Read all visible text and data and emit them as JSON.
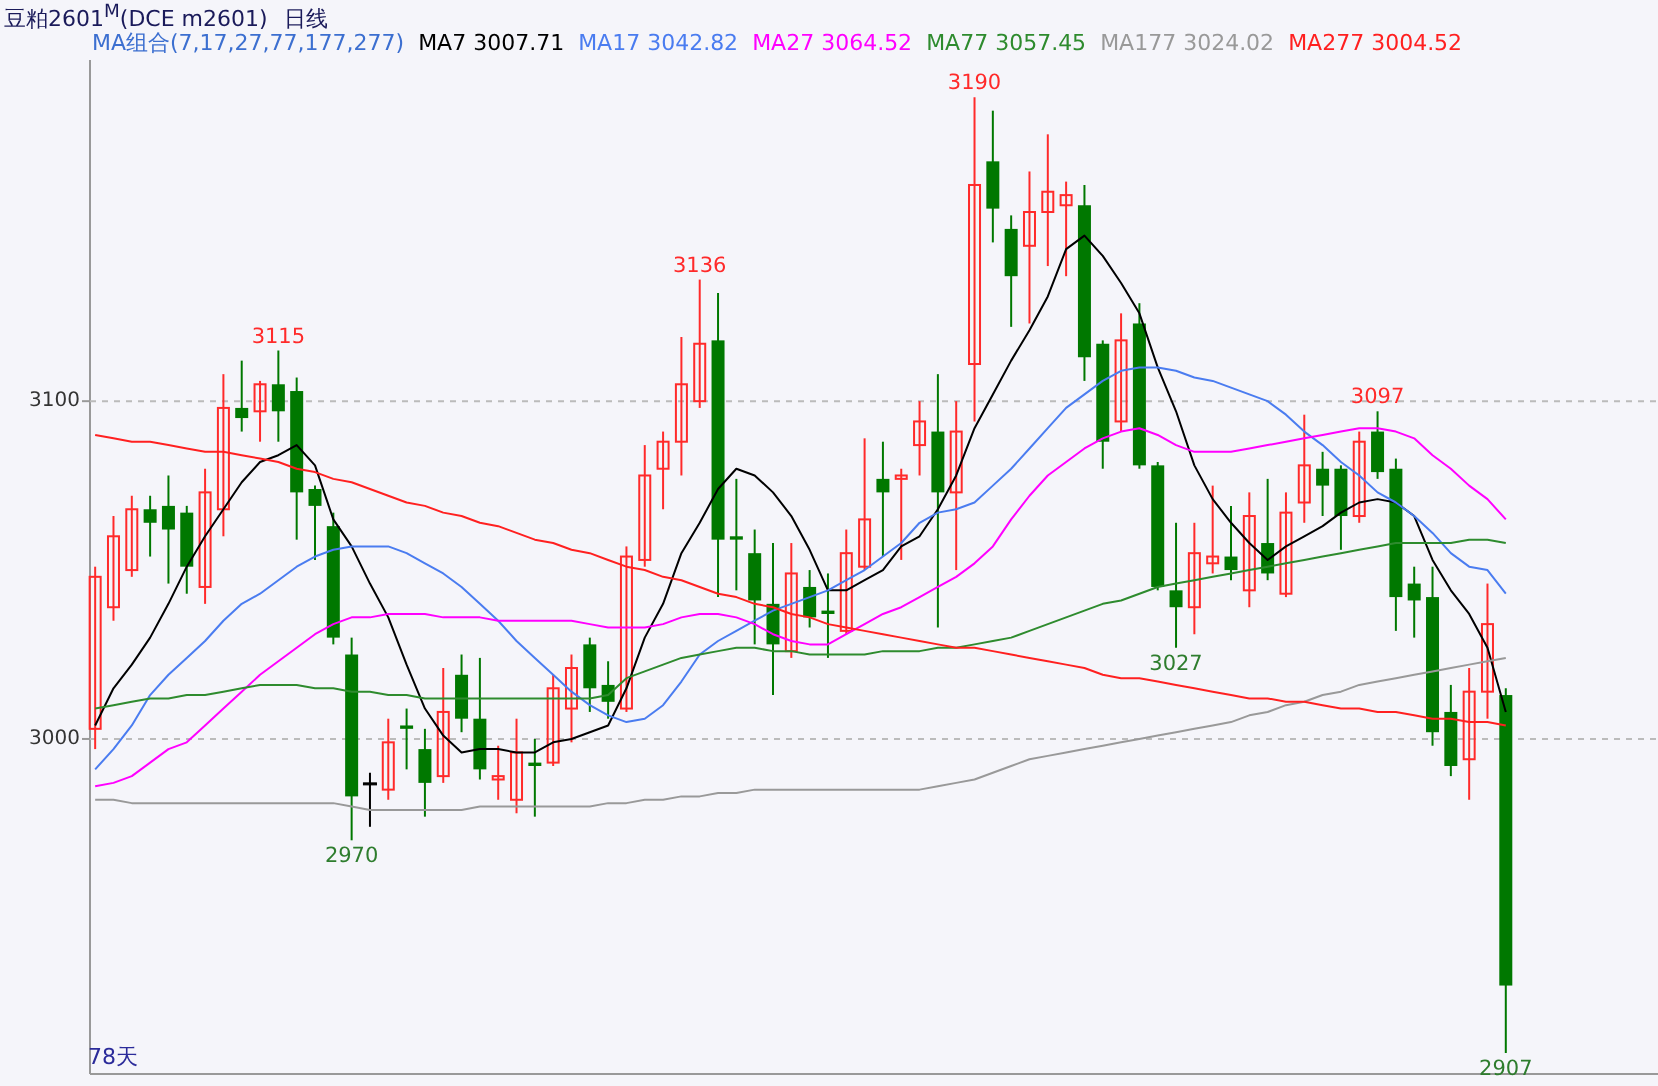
{
  "chart_data": {
    "type": "candlestick",
    "title": "豆粕2601$^{M}$(DCE m2601)",
    "subtitle": "日线",
    "legend_title": "MA组合(7,17,27,77,177,277)",
    "legend": "top",
    "grid": "y",
    "categories": [
      null,
      null,
      null,
      null,
      null,
      null,
      null,
      null,
      null,
      null,
      null,
      null,
      null,
      null,
      null,
      null,
      null,
      null,
      null,
      null,
      null,
      null,
      null,
      null,
      null,
      null,
      null,
      null,
      null,
      null,
      null,
      null,
      null,
      null,
      null,
      null,
      null,
      null,
      null,
      null,
      null,
      null,
      null,
      null,
      null,
      null,
      null,
      null,
      null,
      null,
      null,
      null,
      null,
      null,
      null,
      null,
      null,
      null,
      null,
      null,
      null,
      null,
      null,
      null,
      null,
      null,
      null,
      null,
      null,
      null,
      null,
      null,
      null,
      null,
      null,
      null,
      null,
      null
    ],
    "ylim": [
      2902,
      3201
    ],
    "yticks": [
      3000,
      3100
    ],
    "tick_labels": "y",
    "ohlc": [
      [
        3003,
        3051,
        2997,
        3048
      ],
      [
        3039,
        3066,
        3035,
        3060
      ],
      [
        3050,
        3072,
        3048,
        3068
      ],
      [
        3068,
        3072,
        3054,
        3064
      ],
      [
        3069,
        3078,
        3046,
        3062
      ],
      [
        3067,
        3069,
        3043,
        3051
      ],
      [
        3045,
        3080,
        3040,
        3073
      ],
      [
        3068,
        3108,
        3060,
        3098
      ],
      [
        3098,
        3112,
        3091,
        3095
      ],
      [
        3097,
        3106,
        3088,
        3105
      ],
      [
        3105,
        3115,
        3088,
        3097
      ],
      [
        3103,
        3107,
        3059,
        3073
      ],
      [
        3074,
        3075,
        3053,
        3069
      ],
      [
        3063,
        3067,
        3028,
        3030
      ],
      [
        3025,
        3030,
        2970,
        2983
      ],
      [
        2987,
        2990,
        2974,
        2987
      ],
      [
        2985,
        3006,
        2982,
        2999
      ],
      [
        3004,
        3009,
        2991,
        3003
      ],
      [
        2997,
        3003,
        2977,
        2987
      ],
      [
        2989,
        3021,
        2987,
        3008
      ],
      [
        3019,
        3025,
        3002,
        3006
      ],
      [
        3006,
        3024,
        2988,
        2991
      ],
      [
        2988,
        2998,
        2982,
        2989
      ],
      [
        2982,
        3006,
        2978,
        2996
      ],
      [
        2993,
        3000,
        2977,
        2992
      ],
      [
        2993,
        3019,
        2992,
        3015
      ],
      [
        3009,
        3025,
        2999,
        3021
      ],
      [
        3028,
        3030,
        3008,
        3015
      ],
      [
        3016,
        3023,
        3006,
        3011
      ],
      [
        3009,
        3057,
        3008,
        3054
      ],
      [
        3053,
        3087,
        3051,
        3078
      ],
      [
        3080,
        3091,
        3068,
        3088
      ],
      [
        3088,
        3119,
        3078,
        3105
      ],
      [
        3100,
        3136,
        3098,
        3117
      ],
      [
        3118,
        3132,
        3042,
        3059
      ],
      [
        3060,
        3077,
        3044,
        3059
      ],
      [
        3055,
        3062,
        3028,
        3041
      ],
      [
        3040,
        3058,
        3013,
        3028
      ],
      [
        3026,
        3058,
        3024,
        3049
      ],
      [
        3045,
        3050,
        3033,
        3036
      ],
      [
        3038,
        3049,
        3024,
        3037
      ],
      [
        3032,
        3062,
        3031,
        3055
      ],
      [
        3051,
        3089,
        3050,
        3065
      ],
      [
        3077,
        3088,
        3054,
        3073
      ],
      [
        3077,
        3080,
        3053,
        3078
      ],
      [
        3087,
        3100,
        3078,
        3094
      ],
      [
        3091,
        3108,
        3033,
        3073
      ],
      [
        3073,
        3100,
        3050,
        3091
      ],
      [
        3111,
        3190,
        3094,
        3164
      ],
      [
        3171,
        3186,
        3147,
        3157
      ],
      [
        3151,
        3155,
        3122,
        3137
      ],
      [
        3146,
        3168,
        3123,
        3156
      ],
      [
        3156,
        3179,
        3140,
        3162
      ],
      [
        3158,
        3165,
        3137,
        3161
      ],
      [
        3158,
        3164,
        3106,
        3113
      ],
      [
        3117,
        3118,
        3080,
        3088
      ],
      [
        3094,
        3126,
        3091,
        3118
      ],
      [
        3123,
        3129,
        3080,
        3081
      ],
      [
        3081,
        3082,
        3044,
        3045
      ],
      [
        3044,
        3064,
        3027,
        3039
      ],
      [
        3039,
        3064,
        3031,
        3055
      ],
      [
        3052,
        3075,
        3049,
        3054
      ],
      [
        3054,
        3069,
        3047,
        3050
      ],
      [
        3044,
        3073,
        3039,
        3066
      ],
      [
        3058,
        3077,
        3047,
        3049
      ],
      [
        3043,
        3073,
        3042,
        3067
      ],
      [
        3070,
        3096,
        3064,
        3081
      ],
      [
        3080,
        3085,
        3066,
        3075
      ],
      [
        3080,
        3081,
        3056,
        3066
      ],
      [
        3066,
        3091,
        3064,
        3088
      ],
      [
        3091,
        3097,
        3077,
        3079
      ],
      [
        3080,
        3083,
        3032,
        3042
      ],
      [
        3046,
        3051,
        3030,
        3041
      ],
      [
        3042,
        3051,
        2998,
        3002
      ],
      [
        3008,
        3016,
        2989,
        2992
      ],
      [
        2994,
        3021,
        2982,
        3014
      ],
      [
        3014,
        3046,
        3006,
        3034
      ],
      [
        3013,
        3015,
        2907,
        2927
      ]
    ],
    "colors": [
      "#ff2a2a",
      "#ff2a2a",
      "#ff2a2a",
      "#007800",
      "#007800",
      "#007800",
      "#ff2a2a",
      "#ff2a2a",
      "#007800",
      "#ff2a2a",
      "#007800",
      "#007800",
      "#007800",
      "#007800",
      "#007800",
      "#000000",
      "#ff2a2a",
      "#007800",
      "#007800",
      "#ff2a2a",
      "#007800",
      "#007800",
      "#ff2a2a",
      "#ff2a2a",
      "#007800",
      "#ff2a2a",
      "#ff2a2a",
      "#007800",
      "#007800",
      "#ff2a2a",
      "#ff2a2a",
      "#ff2a2a",
      "#ff2a2a",
      "#ff2a2a",
      "#007800",
      "#007800",
      "#007800",
      "#007800",
      "#ff2a2a",
      "#007800",
      "#007800",
      "#ff2a2a",
      "#ff2a2a",
      "#007800",
      "#ff2a2a",
      "#ff2a2a",
      "#007800",
      "#ff2a2a",
      "#ff2a2a",
      "#007800",
      "#007800",
      "#ff2a2a",
      "#ff2a2a",
      "#ff2a2a",
      "#007800",
      "#007800",
      "#ff2a2a",
      "#007800",
      "#007800",
      "#007800",
      "#ff2a2a",
      "#ff2a2a",
      "#007800",
      "#ff2a2a",
      "#007800",
      "#ff2a2a",
      "#ff2a2a",
      "#007800",
      "#007800",
      "#ff2a2a",
      "#007800",
      "#007800",
      "#007800",
      "#007800",
      "#007800",
      "#ff2a2a",
      "#ff2a2a",
      "#007800"
    ],
    "series": [
      {
        "type": "line",
        "name": "MA7 3007.71",
        "color": "#000000",
        "values": [
          3004,
          3015,
          3022,
          3030,
          3040,
          3051,
          3060,
          3068,
          3076,
          3082,
          3084,
          3087,
          3081,
          3065,
          3057,
          3046,
          3036,
          3022,
          3009,
          3001,
          2996,
          2997,
          2997,
          2996,
          2996,
          2999,
          3000,
          3002,
          3004,
          3015,
          3030,
          3040,
          3055,
          3064,
          3074,
          3080,
          3078,
          3073,
          3066,
          3056,
          3044,
          3044,
          3047,
          3050,
          3057,
          3060,
          3068,
          3078,
          3092,
          3102,
          3112,
          3121,
          3131,
          3145,
          3149,
          3143,
          3135,
          3126,
          3110,
          3097,
          3081,
          3071,
          3064,
          3058,
          3053,
          3057,
          3060,
          3063,
          3067,
          3070,
          3071,
          3070,
          3066,
          3053,
          3044,
          3037,
          3027,
          3008
        ]
      },
      {
        "type": "line",
        "name": "MA17 3042.82",
        "color": "#4a7cf0",
        "values": [
          2991,
          2997,
          3004,
          3013,
          3019,
          3024,
          3029,
          3035,
          3040,
          3043,
          3047,
          3051,
          3054,
          3056,
          3057,
          3057,
          3057,
          3055,
          3052,
          3049,
          3045,
          3040,
          3035,
          3029,
          3024,
          3019,
          3014,
          3010,
          3007,
          3005,
          3006,
          3010,
          3017,
          3025,
          3029,
          3032,
          3035,
          3038,
          3040,
          3042,
          3044,
          3047,
          3050,
          3054,
          3058,
          3064,
          3067,
          3068,
          3070,
          3075,
          3080,
          3086,
          3092,
          3098,
          3102,
          3106,
          3109,
          3110,
          3110,
          3109,
          3107,
          3106,
          3104,
          3102,
          3100,
          3096,
          3091,
          3087,
          3082,
          3078,
          3073,
          3070,
          3066,
          3061,
          3055,
          3051,
          3050,
          3043
        ]
      },
      {
        "type": "line",
        "name": "MA27 3064.52",
        "color": "#ff00ff",
        "values": [
          2986,
          2987,
          2989,
          2993,
          2997,
          2999,
          3004,
          3009,
          3014,
          3019,
          3023,
          3027,
          3031,
          3034,
          3036,
          3036,
          3037,
          3037,
          3037,
          3036,
          3036,
          3036,
          3035,
          3035,
          3035,
          3035,
          3035,
          3034,
          3033,
          3033,
          3033,
          3034,
          3036,
          3037,
          3037,
          3036,
          3034,
          3031,
          3029,
          3028,
          3028,
          3031,
          3034,
          3037,
          3039,
          3042,
          3045,
          3048,
          3052,
          3057,
          3065,
          3072,
          3078,
          3082,
          3086,
          3089,
          3091,
          3092,
          3090,
          3087,
          3085,
          3085,
          3085,
          3086,
          3087,
          3088,
          3089,
          3090,
          3091,
          3092,
          3092,
          3091,
          3089,
          3084,
          3080,
          3075,
          3071,
          3065
        ]
      },
      {
        "type": "line",
        "name": "MA77 3057.45",
        "color": "#2e8b2e",
        "values": [
          3009,
          3010,
          3011,
          3012,
          3012,
          3013,
          3013,
          3014,
          3015,
          3016,
          3016,
          3016,
          3015,
          3015,
          3014,
          3014,
          3013,
          3013,
          3012,
          3012,
          3012,
          3012,
          3012,
          3012,
          3012,
          3012,
          3012,
          3012,
          3013,
          3018,
          3020,
          3022,
          3024,
          3025,
          3026,
          3027,
          3027,
          3026,
          3026,
          3025,
          3025,
          3025,
          3025,
          3026,
          3026,
          3026,
          3027,
          3027,
          3028,
          3029,
          3030,
          3032,
          3034,
          3036,
          3038,
          3040,
          3041,
          3043,
          3045,
          3046,
          3047,
          3048,
          3049,
          3050,
          3051,
          3052,
          3053,
          3054,
          3055,
          3056,
          3057,
          3058,
          3058,
          3058,
          3058,
          3059,
          3059,
          3058
        ]
      },
      {
        "type": "line",
        "name": "MA177 3024.02",
        "color": "#999999",
        "values": [
          2982,
          2982,
          2981,
          2981,
          2981,
          2981,
          2981,
          2981,
          2981,
          2981,
          2981,
          2981,
          2981,
          2981,
          2980,
          2979,
          2979,
          2979,
          2979,
          2979,
          2979,
          2980,
          2980,
          2980,
          2980,
          2980,
          2980,
          2980,
          2981,
          2981,
          2982,
          2982,
          2983,
          2983,
          2984,
          2984,
          2985,
          2985,
          2985,
          2985,
          2985,
          2985,
          2985,
          2985,
          2985,
          2985,
          2986,
          2987,
          2988,
          2990,
          2992,
          2994,
          2995,
          2996,
          2997,
          2998,
          2999,
          3000,
          3001,
          3002,
          3003,
          3004,
          3005,
          3007,
          3008,
          3010,
          3011,
          3013,
          3014,
          3016,
          3017,
          3018,
          3019,
          3020,
          3021,
          3022,
          3023,
          3024
        ]
      },
      {
        "type": "line",
        "name": "MA277 3004.52",
        "color": "#ff2020",
        "values": [
          3090,
          3089,
          3088,
          3088,
          3087,
          3086,
          3085,
          3085,
          3084,
          3083,
          3082,
          3080,
          3079,
          3077,
          3076,
          3074,
          3072,
          3070,
          3069,
          3067,
          3066,
          3064,
          3063,
          3061,
          3059,
          3058,
          3056,
          3055,
          3053,
          3051,
          3050,
          3048,
          3047,
          3045,
          3043,
          3042,
          3040,
          3039,
          3037,
          3036,
          3034,
          3033,
          3032,
          3031,
          3030,
          3029,
          3028,
          3027,
          3027,
          3026,
          3025,
          3024,
          3023,
          3022,
          3021,
          3019,
          3018,
          3018,
          3017,
          3016,
          3015,
          3014,
          3013,
          3012,
          3012,
          3011,
          3011,
          3010,
          3009,
          3009,
          3008,
          3008,
          3007,
          3006,
          3006,
          3005,
          3005,
          3004
        ]
      }
    ],
    "annotations": [
      {
        "text": "3115",
        "y": 3115
      },
      {
        "text": "2970",
        "y": 2970
      },
      {
        "text": "3136",
        "y": 3136
      },
      {
        "text": "3190",
        "y": 3190
      },
      {
        "text": "3027",
        "y": 3027
      },
      {
        "text": "3097",
        "y": 3097
      },
      {
        "text": "2907",
        "y": 2907
      },
      "78天"
    ]
  }
}
